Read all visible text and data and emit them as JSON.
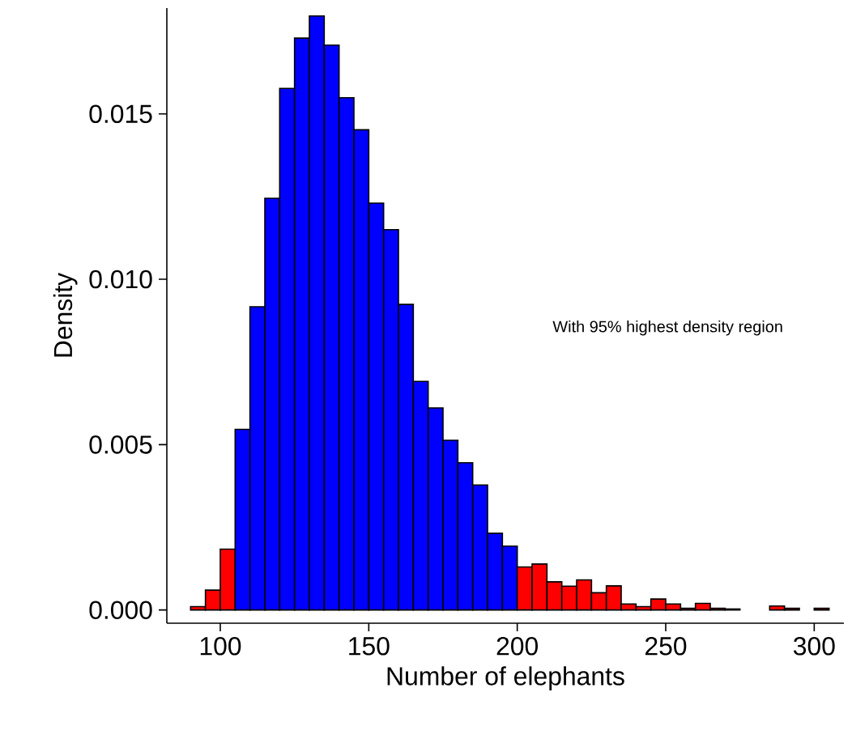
{
  "chart_data": {
    "type": "histogram",
    "xlabel": "Number of elephants",
    "ylabel": "Density",
    "annotations": [
      "With 95% highest density region"
    ],
    "bins": [
      90,
      95,
      100,
      105,
      110,
      115,
      120,
      125,
      130,
      135,
      140,
      145,
      150,
      155,
      160,
      165,
      170,
      175,
      180,
      185,
      190,
      195,
      200,
      205,
      210,
      215,
      220,
      225,
      230,
      235,
      240,
      245,
      250,
      255,
      260,
      265,
      270,
      275,
      280,
      285,
      290,
      295,
      300,
      305
    ],
    "values": [
      0.0001,
      0.0006,
      0.00184,
      0.00546,
      0.00917,
      0.01245,
      0.01577,
      0.01729,
      0.01796,
      0.01708,
      0.01549,
      0.01452,
      0.0123,
      0.0115,
      0.00924,
      0.00691,
      0.00611,
      0.00513,
      0.00445,
      0.00378,
      0.00232,
      0.00193,
      0.0013,
      0.00139,
      0.00085,
      0.00072,
      0.00091,
      0.00052,
      0.00073,
      0.00018,
      0.0001,
      0.00033,
      0.00018,
      5e-05,
      0.0002,
      5e-05,
      3e-05,
      0,
      0,
      0.00012,
      5e-05,
      0,
      5e-05
    ],
    "colors": [
      "#ff0000",
      "#ff0000",
      "#ff0000",
      "#0000ff",
      "#0000ff",
      "#0000ff",
      "#0000ff",
      "#0000ff",
      "#0000ff",
      "#0000ff",
      "#0000ff",
      "#0000ff",
      "#0000ff",
      "#0000ff",
      "#0000ff",
      "#0000ff",
      "#0000ff",
      "#0000ff",
      "#0000ff",
      "#0000ff",
      "#0000ff",
      "#0000ff",
      "#ff0000",
      "#ff0000",
      "#ff0000",
      "#ff0000",
      "#ff0000",
      "#ff0000",
      "#ff0000",
      "#ff0000",
      "#ff0000",
      "#ff0000",
      "#ff0000",
      "#ff0000",
      "#ff0000",
      "#ff0000",
      "#ff0000",
      "#ff0000",
      "#ff0000",
      "#ff0000",
      "#ff0000",
      "#ff0000",
      "#ff0000"
    ],
    "xlim": [
      82,
      310
    ],
    "ylim": [
      -0.0004,
      0.0182
    ],
    "xticks": [
      100,
      150,
      200,
      250,
      300
    ],
    "yticks": [
      {
        "value": 0,
        "label": "0.000"
      },
      {
        "value": 0.005,
        "label": "0.005"
      },
      {
        "value": 0.01,
        "label": "0.010"
      },
      {
        "value": 0.015,
        "label": "0.015"
      }
    ]
  }
}
